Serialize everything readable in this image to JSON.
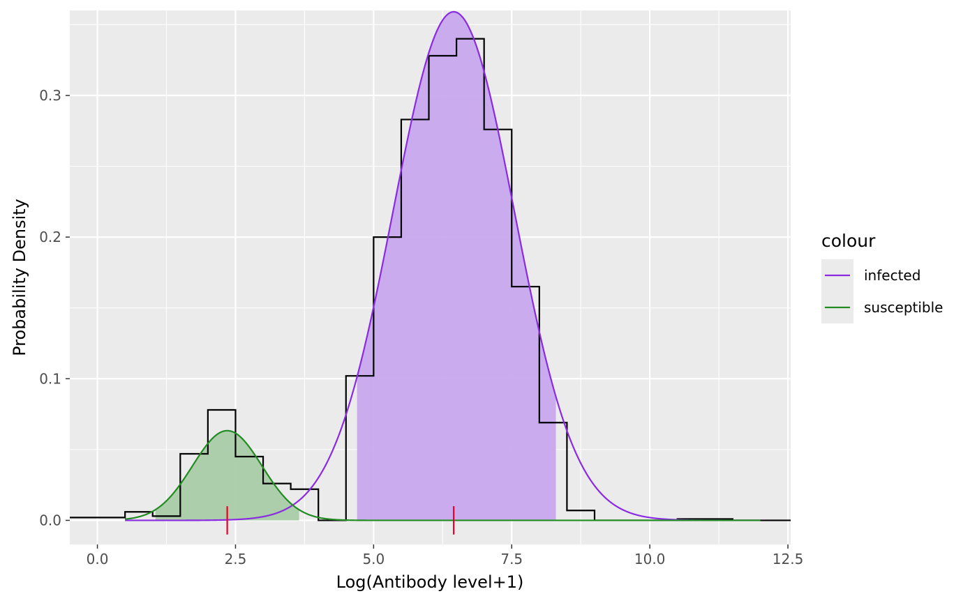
{
  "chart_data": {
    "type": "area",
    "xlabel": "Log(Antibody level+1)",
    "ylabel": "Probability Density",
    "xlim": [
      -0.5,
      12.55
    ],
    "ylim": [
      -0.017,
      0.36
    ],
    "x_ticks": [
      0.0,
      2.5,
      5.0,
      7.5,
      10.0,
      12.5
    ],
    "x_tick_labels": [
      "0.0",
      "2.5",
      "5.0",
      "7.5",
      "10.0",
      "12.5"
    ],
    "y_ticks": [
      0.0,
      0.1,
      0.2,
      0.3
    ],
    "y_tick_labels": [
      "0.0",
      "0.1",
      "0.2",
      "0.3"
    ],
    "grid": true,
    "legend": {
      "title": "colour",
      "position": "right",
      "entries": [
        {
          "label": "infected",
          "color": "#8a2be2"
        },
        {
          "label": "susceptible",
          "color": "#228b22"
        }
      ]
    },
    "histogram": {
      "color": "#000000",
      "bins": [
        {
          "x0": -0.5,
          "x1": 0.5,
          "density": 0.002
        },
        {
          "x0": 0.5,
          "x1": 1.0,
          "density": 0.006
        },
        {
          "x0": 1.0,
          "x1": 1.5,
          "density": 0.003
        },
        {
          "x0": 1.5,
          "x1": 2.0,
          "density": 0.047
        },
        {
          "x0": 2.0,
          "x1": 2.5,
          "density": 0.078
        },
        {
          "x0": 2.5,
          "x1": 3.0,
          "density": 0.045
        },
        {
          "x0": 3.0,
          "x1": 3.5,
          "density": 0.026
        },
        {
          "x0": 3.5,
          "x1": 4.0,
          "density": 0.022
        },
        {
          "x0": 4.0,
          "x1": 4.5,
          "density": 0.0
        },
        {
          "x0": 4.5,
          "x1": 5.0,
          "density": 0.102
        },
        {
          "x0": 5.0,
          "x1": 5.5,
          "density": 0.2
        },
        {
          "x0": 5.5,
          "x1": 6.0,
          "density": 0.283
        },
        {
          "x0": 6.0,
          "x1": 6.5,
          "density": 0.328
        },
        {
          "x0": 6.5,
          "x1": 7.0,
          "density": 0.34
        },
        {
          "x0": 7.0,
          "x1": 7.5,
          "density": 0.276
        },
        {
          "x0": 7.5,
          "x1": 8.0,
          "density": 0.165
        },
        {
          "x0": 8.0,
          "x1": 8.5,
          "density": 0.069
        },
        {
          "x0": 8.5,
          "x1": 9.0,
          "density": 0.007
        },
        {
          "x0": 9.0,
          "x1": 10.5,
          "density": 0.0
        },
        {
          "x0": 10.5,
          "x1": 11.5,
          "density": 0.001
        },
        {
          "x0": 11.5,
          "x1": 12.55,
          "density": 0.0
        }
      ]
    },
    "series": [
      {
        "name": "infected",
        "color": "#8a2be2",
        "fill": "#c8a8ee",
        "distribution": {
          "mean": 6.45,
          "sd": 1.1,
          "weight": 0.99
        },
        "curve_range": [
          0.5,
          12.0
        ],
        "shaded_range": [
          4.7,
          8.3
        ],
        "marker_x": 6.45
      },
      {
        "name": "susceptible",
        "color": "#228b22",
        "fill": "#a9cca6",
        "distribution": {
          "mean": 2.35,
          "sd": 0.63,
          "weight": 0.1
        },
        "curve_range": [
          0.5,
          12.0
        ],
        "shaded_range": [
          1.05,
          3.65
        ],
        "marker_x": 2.35
      }
    ],
    "marker_color": "#e8002a"
  }
}
